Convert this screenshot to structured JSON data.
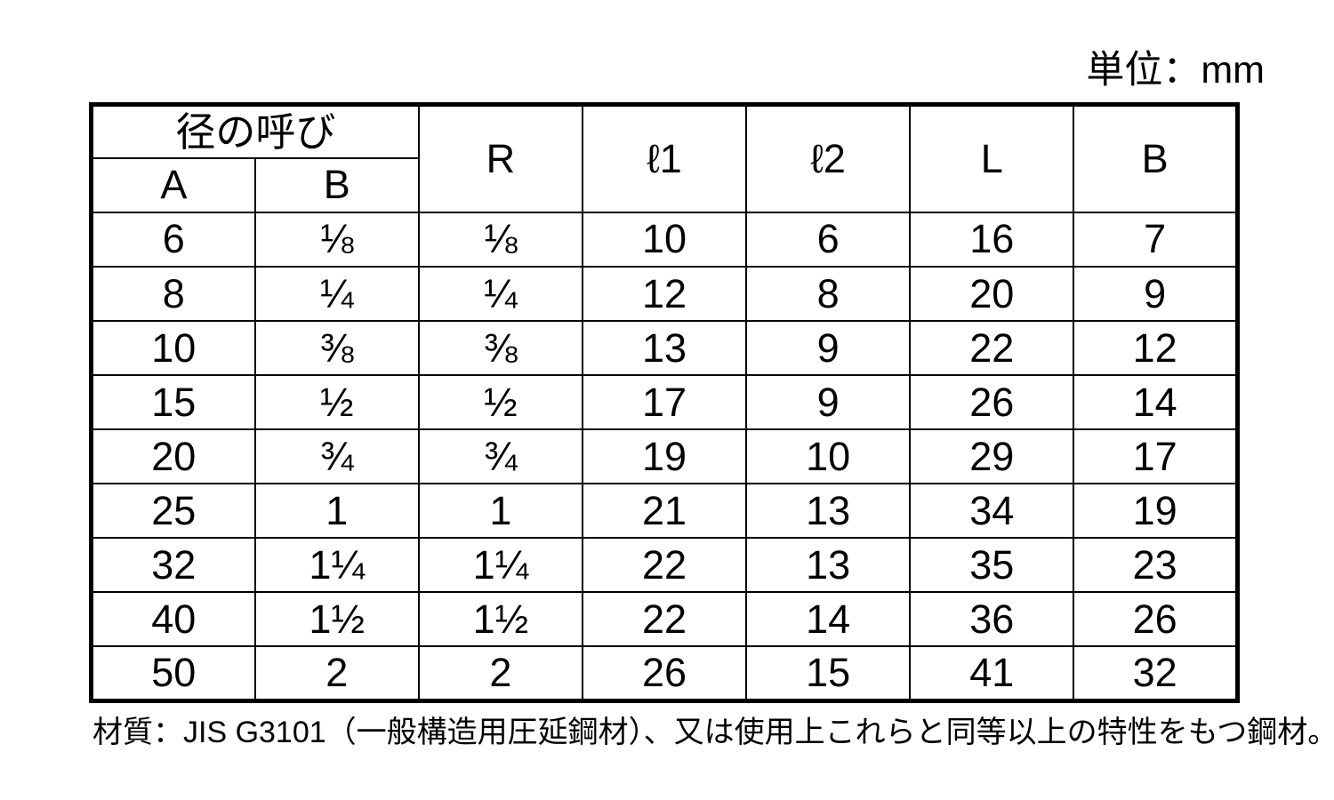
{
  "unit_label": "単位：mm",
  "table": {
    "group_header": {
      "label": "径の呼び",
      "subs": [
        "A",
        "B"
      ]
    },
    "span_headers": [
      "R",
      "ℓ1",
      "ℓ2",
      "L",
      "B"
    ],
    "rows": [
      [
        "6",
        "⅛",
        "⅛",
        "10",
        "6",
        "16",
        "7"
      ],
      [
        "8",
        "¼",
        "¼",
        "12",
        "8",
        "20",
        "9"
      ],
      [
        "10",
        "⅜",
        "⅜",
        "13",
        "9",
        "22",
        "12"
      ],
      [
        "15",
        "½",
        "½",
        "17",
        "9",
        "26",
        "14"
      ],
      [
        "20",
        "¾",
        "¾",
        "19",
        "10",
        "29",
        "17"
      ],
      [
        "25",
        "1",
        "1",
        "21",
        "13",
        "34",
        "19"
      ],
      [
        "32",
        "1¼",
        "1¼",
        "22",
        "13",
        "35",
        "23"
      ],
      [
        "40",
        "1½",
        "1½",
        "22",
        "14",
        "36",
        "26"
      ],
      [
        "50",
        "2",
        "2",
        "26",
        "15",
        "41",
        "32"
      ]
    ]
  },
  "footer_note": "材質：JIS G3101（一般構造用圧延鋼材）、又は使用上これらと同等以上の特性をもつ鋼材。"
}
